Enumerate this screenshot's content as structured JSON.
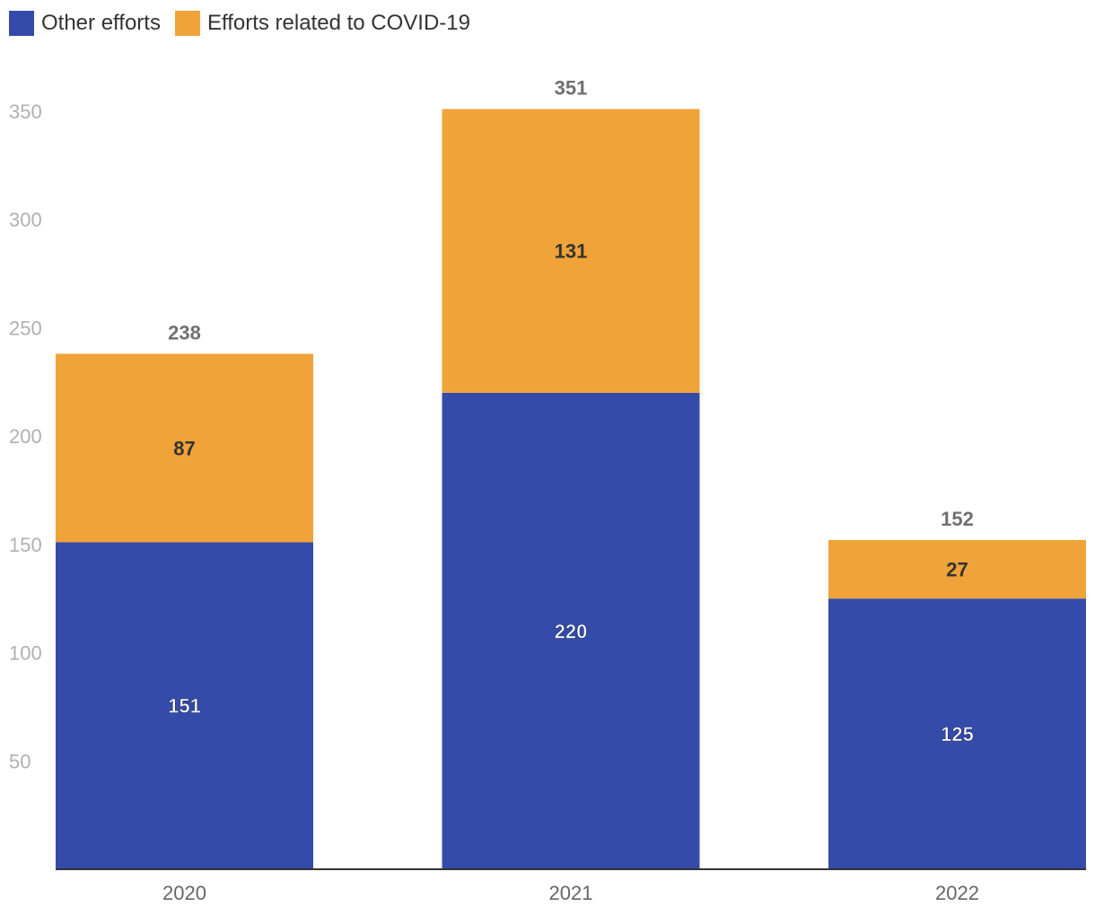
{
  "chart_data": {
    "type": "bar",
    "stacked": true,
    "categories": [
      "2020",
      "2021",
      "2022"
    ],
    "series": [
      {
        "name": "Other efforts",
        "color": "#344baa",
        "values": [
          151,
          220,
          125
        ],
        "label_color": "#ffffff"
      },
      {
        "name": "Efforts related to COVID-19",
        "color": "#f0a338",
        "values": [
          87,
          131,
          27
        ],
        "label_color": "#333333"
      }
    ],
    "totals": [
      238,
      351,
      152
    ],
    "yticks": [
      50,
      100,
      150,
      200,
      250,
      300,
      350
    ],
    "ylim": [
      0,
      350
    ],
    "grid": false,
    "legend_position": "top-left"
  }
}
